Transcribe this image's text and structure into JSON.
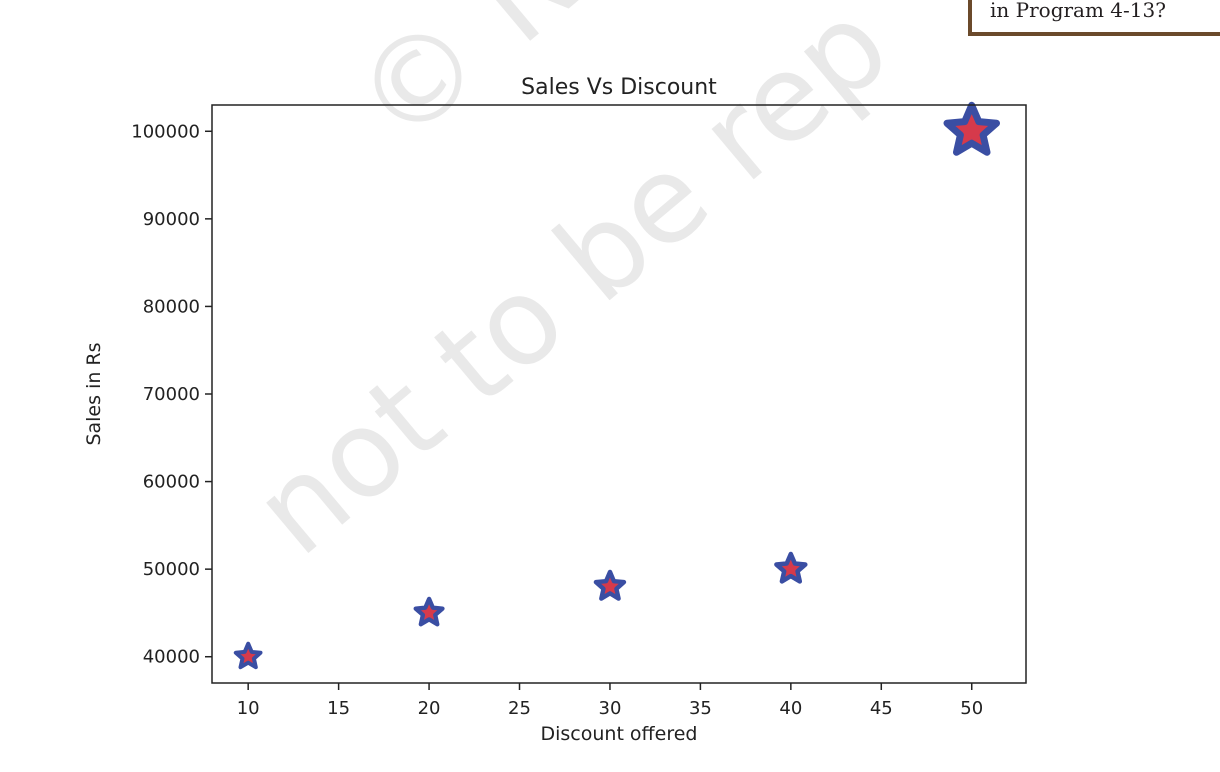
{
  "callout": {
    "text": "in Program 4-13?"
  },
  "watermark": {
    "lines": [
      "© N",
      "not to be rep"
    ]
  },
  "colors": {
    "marker_edge": "#3a4ea3",
    "marker_face": "#d63a4b",
    "axis": "#222222",
    "text": "#222222",
    "callout_border": "#6b4a2b"
  },
  "chart_data": {
    "type": "scatter",
    "title": "Sales Vs Discount",
    "xlabel": "Discount offered",
    "ylabel": "Sales in Rs",
    "xlim": [
      8,
      53
    ],
    "ylim": [
      37000,
      103000
    ],
    "xticks": [
      10,
      15,
      20,
      25,
      30,
      35,
      40,
      45,
      50
    ],
    "yticks": [
      40000,
      50000,
      60000,
      70000,
      80000,
      90000,
      100000
    ],
    "grid": false,
    "marker": "star",
    "series": [
      {
        "x": [
          10,
          20,
          30,
          40,
          50
        ],
        "y": [
          40000,
          45000,
          48000,
          50000,
          100000
        ],
        "marker_sizes": [
          40,
          45,
          48,
          50,
          100
        ]
      }
    ]
  }
}
